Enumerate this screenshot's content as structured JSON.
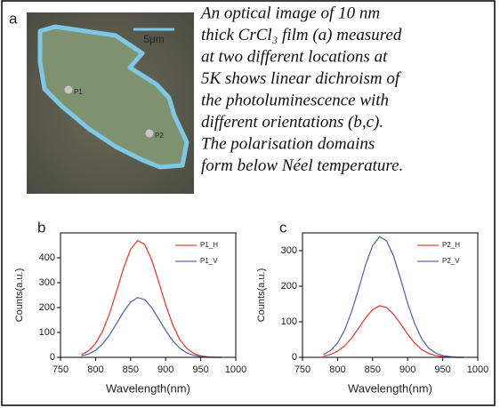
{
  "image": {
    "panel": "a",
    "scale_bar": "5μm",
    "points": [
      "P1",
      "P2"
    ]
  },
  "caption": [
    "An optical image of 10 nm",
    "thick CrCl₃ film (a) measured",
    "at two different locations at",
    "5K shows linear dichroism of",
    "the photoluminescence with",
    "different orientations (b,c).",
    "The polarisation domains",
    "form below Néel temperature."
  ],
  "chart_data": [
    {
      "type": "line",
      "panel": "b",
      "xlabel": "Wavelength(nm)",
      "ylabel": "Counts(a.u.)",
      "x": [
        780,
        790,
        800,
        810,
        820,
        830,
        840,
        850,
        860,
        870,
        880,
        890,
        900,
        910,
        920,
        930,
        940,
        950,
        960,
        970,
        980
      ],
      "xlim": [
        750,
        1000
      ],
      "xticks": [
        750,
        800,
        850,
        900,
        950,
        1000
      ],
      "ylim": [
        0,
        500
      ],
      "yticks": [
        0,
        100,
        200,
        300,
        400
      ],
      "legend": "upper right",
      "series": [
        {
          "name": "P1_H",
          "color": "#e8403a",
          "values": [
            11,
            26,
            55,
            105,
            176,
            266,
            359,
            434,
            469,
            454,
            392,
            304,
            211,
            131,
            72,
            36,
            16,
            6,
            2,
            0,
            0
          ]
        },
        {
          "name": "P1_V",
          "color": "#5a6aa8",
          "values": [
            6,
            13,
            28,
            54,
            90,
            136,
            183,
            222,
            240,
            232,
            200,
            155,
            108,
            67,
            37,
            18,
            8,
            3,
            1,
            0,
            0
          ]
        }
      ]
    },
    {
      "type": "line",
      "panel": "c",
      "xlabel": "Wavelength(nm)",
      "ylabel": "Counts(a.u.)",
      "x": [
        780,
        790,
        800,
        810,
        820,
        830,
        840,
        850,
        860,
        870,
        880,
        890,
        900,
        910,
        920,
        930,
        940,
        950,
        960,
        970,
        980
      ],
      "xlim": [
        750,
        1000
      ],
      "xticks": [
        750,
        800,
        850,
        900,
        950,
        1000
      ],
      "ylim": [
        0,
        350
      ],
      "yticks": [
        0,
        100,
        200,
        300
      ],
      "legend": "upper right",
      "series": [
        {
          "name": "P2_H",
          "color": "#e8403a",
          "values": [
            3,
            8,
            17,
            32,
            54,
            82,
            111,
            134,
            145,
            140,
            121,
            94,
            65,
            40,
            22,
            11,
            5,
            2,
            1,
            0,
            0
          ]
        },
        {
          "name": "P2_V",
          "color": "#5a6aa8",
          "values": [
            8,
            19,
            40,
            76,
            128,
            192,
            260,
            314,
            339,
            328,
            284,
            220,
            152,
            95,
            52,
            26,
            12,
            5,
            2,
            0,
            0
          ]
        }
      ]
    }
  ]
}
